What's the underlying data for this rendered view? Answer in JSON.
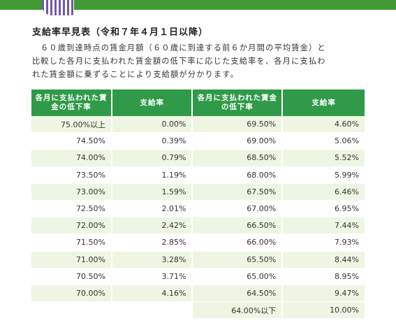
{
  "title": "支給率早見表（令和７年４月１日以降）",
  "description": [
    "６０歳到達時点の賃金月額（６０歳に到達する前６か月間の平均賃金）と",
    "比較した各月に支払われた賃金額の低下率に応じた支給率を、各月に支払わ",
    "れた賃金額に乗ずることにより支給額が分かります。"
  ],
  "table": {
    "headers": [
      "各月に支払われた賃金の低下率",
      "支給率",
      "各月に支払われた賃金の低下率",
      "支給率"
    ],
    "rows": [
      [
        "75.00%以上",
        "0.00%",
        "69.50%",
        "4.60%"
      ],
      [
        "74.50%",
        "0.39%",
        "69.00%",
        "5.06%"
      ],
      [
        "74.00%",
        "0.79%",
        "68.50%",
        "5.52%"
      ],
      [
        "73.50%",
        "1.19%",
        "68.00%",
        "5.99%"
      ],
      [
        "73.00%",
        "1.59%",
        "67.50%",
        "6.46%"
      ],
      [
        "72.50%",
        "2.01%",
        "67.00%",
        "6.95%"
      ],
      [
        "72.00%",
        "2.42%",
        "66.50%",
        "7.44%"
      ],
      [
        "71.50%",
        "2.85%",
        "66.00%",
        "7.93%"
      ],
      [
        "71.00%",
        "3.28%",
        "65.50%",
        "8.44%"
      ],
      [
        "70.50%",
        "3.71%",
        "65.00%",
        "8.95%"
      ],
      [
        "70.00%",
        "4.16%",
        "64.50%",
        "9.47%"
      ]
    ],
    "last_row": [
      "64.00%以下",
      "10.00%"
    ]
  },
  "colors": {
    "header_green": "#2f9a47",
    "top_bar_green": "#3f9a34",
    "row_tint": "#eef6e3",
    "stripe_purple": "#6f5aa6"
  }
}
